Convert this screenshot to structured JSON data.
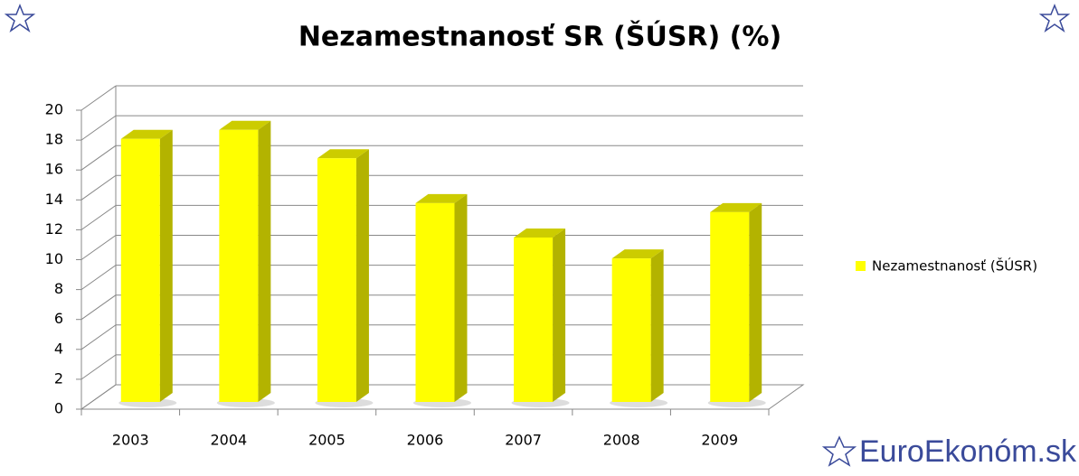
{
  "chart_data": {
    "type": "bar3d",
    "title": "Nezamestnanosť SR (ŠÚSR) (%)",
    "categories": [
      "2003",
      "2004",
      "2005",
      "2006",
      "2007",
      "2008",
      "2009"
    ],
    "series": [
      {
        "name": "Nezamestnanosť (ŠÚSR)",
        "color": "#ffff00",
        "values": [
          17.6,
          18.2,
          16.3,
          13.3,
          11.0,
          9.6,
          12.7
        ]
      }
    ],
    "ylim": [
      0,
      20
    ],
    "yticks": [
      0,
      2,
      4,
      6,
      8,
      10,
      12,
      14,
      16,
      18,
      20
    ],
    "grid": true,
    "legend": "right"
  },
  "brand": "EuroEkonóm.sk"
}
